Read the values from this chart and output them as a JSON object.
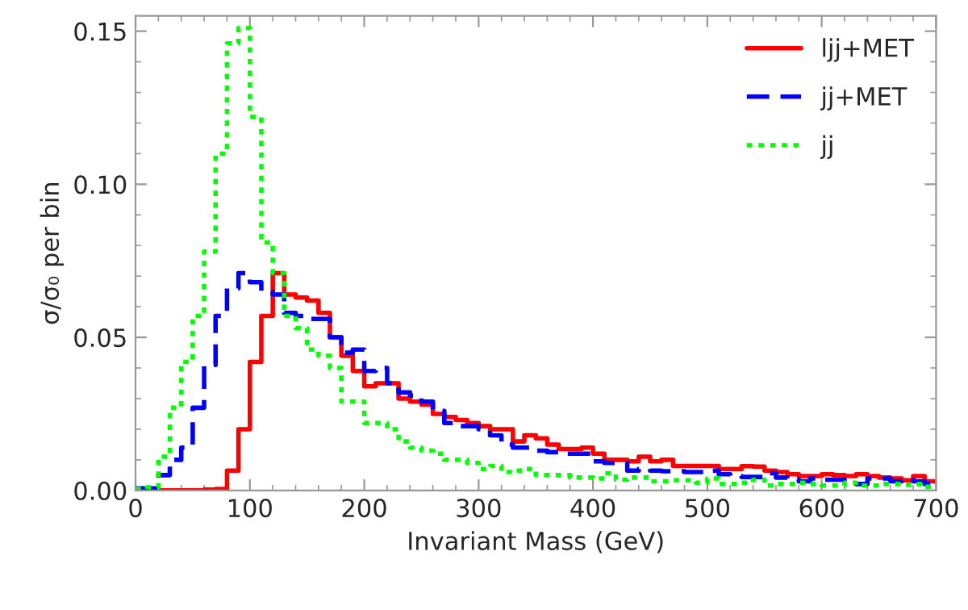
{
  "chart_data": {
    "type": "histogram",
    "xlabel": "Invariant Mass (GeV)",
    "ylabel": "σ/σ₀ per bin",
    "bins": [
      0,
      10,
      20,
      30,
      40,
      50,
      60,
      70,
      80,
      90,
      100,
      110,
      120,
      130,
      140,
      150,
      160,
      170,
      180,
      190,
      200,
      210,
      220,
      230,
      240,
      250,
      260,
      270,
      280,
      290,
      300,
      310,
      320,
      330,
      340,
      350,
      360,
      370,
      380,
      390,
      400,
      410,
      420,
      430,
      440,
      450,
      460,
      470,
      480,
      490,
      500,
      510,
      520,
      530,
      540,
      550,
      560,
      570,
      580,
      590,
      600,
      610,
      620,
      630,
      640,
      650,
      660,
      670,
      680,
      690,
      700
    ],
    "series": [
      {
        "name": "ljj+MET",
        "color": "#ff0000",
        "line_style": "solid",
        "values": [
          0,
          0,
          0,
          0,
          0,
          0,
          0.0003,
          0.0005,
          0.0065,
          0.02,
          0.042,
          0.057,
          0.071,
          0.064,
          0.063,
          0.062,
          0.058,
          0.05,
          0.044,
          0.039,
          0.034,
          0.035,
          0.035,
          0.03,
          0.029,
          0.028,
          0.025,
          0.024,
          0.023,
          0.022,
          0.021,
          0.02,
          0.02,
          0.016,
          0.018,
          0.017,
          0.015,
          0.0135,
          0.0135,
          0.014,
          0.012,
          0.01,
          0.01,
          0.0095,
          0.011,
          0.0095,
          0.01,
          0.008,
          0.008,
          0.008,
          0.008,
          0.007,
          0.007,
          0.0079,
          0.0078,
          0.0065,
          0.006,
          0.0053,
          0.0047,
          0.0047,
          0.0053,
          0.005,
          0.0047,
          0.0053,
          0.0047,
          0.0042,
          0.0039,
          0.0033,
          0.0047,
          0.003
        ]
      },
      {
        "name": "jj+MET",
        "color": "#0000ff",
        "line_style": "dashed",
        "values": [
          0.0007,
          0.0007,
          0.005,
          0.01,
          0.014,
          0.027,
          0.041,
          0.057,
          0.066,
          0.071,
          0.068,
          0.065,
          0.064,
          0.058,
          0.057,
          0.056,
          0.056,
          0.05,
          0.045,
          0.046,
          0.039,
          0.04,
          0.035,
          0.032,
          0.031,
          0.029,
          0.026,
          0.022,
          0.021,
          0.021,
          0.02,
          0.018,
          0.015,
          0.014,
          0.014,
          0.013,
          0.0125,
          0.012,
          0.012,
          0.012,
          0.0095,
          0.009,
          0.009,
          0.0065,
          0.007,
          0.0065,
          0.0063,
          0.0063,
          0.006,
          0.006,
          0.0065,
          0.0053,
          0.0047,
          0.0044,
          0.0044,
          0.0056,
          0.0042,
          0.0035,
          0.003,
          0.0039,
          0.0035,
          0.0035,
          0.003,
          0.0021,
          0.0039,
          0.0039,
          0.003,
          0.0035,
          0.003,
          0.0021
        ]
      },
      {
        "name": "jj",
        "color": "#00ff00",
        "line_style": "dotted",
        "values": [
          0.0005,
          0.001,
          0.011,
          0.027,
          0.042,
          0.057,
          0.078,
          0.11,
          0.146,
          0.151,
          0.122,
          0.081,
          0.071,
          0.057,
          0.053,
          0.046,
          0.044,
          0.04,
          0.029,
          0.029,
          0.022,
          0.022,
          0.02,
          0.016,
          0.014,
          0.013,
          0.012,
          0.01,
          0.01,
          0.009,
          0.007,
          0.008,
          0.006,
          0.0065,
          0.007,
          0.005,
          0.005,
          0.005,
          0.0042,
          0.0042,
          0.0039,
          0.0056,
          0.0035,
          0.0042,
          0.0042,
          0.003,
          0.003,
          0.0033,
          0.0033,
          0.0025,
          0.0039,
          0.0021,
          0.0021,
          0.0025,
          0.0035,
          0.0016,
          0.0021,
          0.0021,
          0.0025,
          0.0021,
          0.0016,
          0.0016,
          0.0025,
          0.0016,
          0.0016,
          0.0021,
          0.0021,
          0.0018,
          0.0021,
          0.0012
        ]
      }
    ],
    "xlim": [
      0,
      700
    ],
    "xticks": [
      0,
      100,
      200,
      300,
      400,
      500,
      600,
      700
    ],
    "ylim": [
      0,
      0.155
    ],
    "yticks": [
      {
        "value": 0,
        "label": "0.00"
      },
      {
        "value": 0.05,
        "label": "0.05"
      },
      {
        "value": 0.1,
        "label": "0.10"
      },
      {
        "value": 0.15,
        "label": "0.15"
      }
    ],
    "legend": "top right",
    "grid": false
  }
}
